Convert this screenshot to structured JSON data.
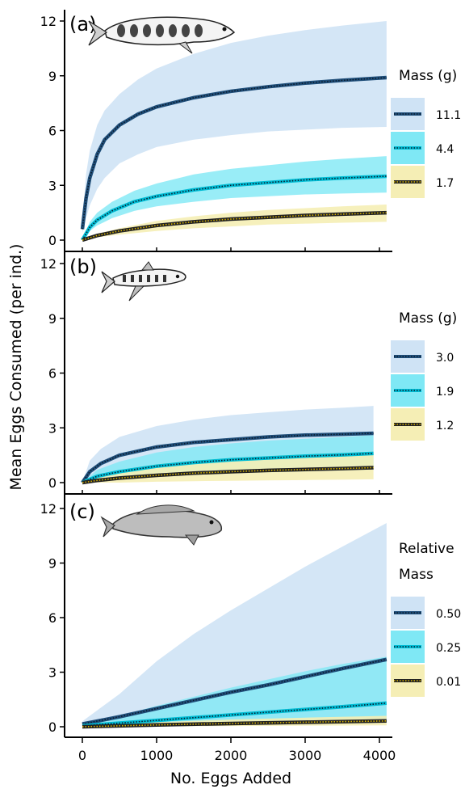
{
  "figure": {
    "ylabel": "Mean Eggs Consumed (per ind.)",
    "xlabel": "No. Eggs Added",
    "x_ticks": [
      0,
      1000,
      2000,
      3000,
      4000
    ],
    "y_ticks": [
      0,
      3,
      6,
      9,
      12
    ],
    "colors": {
      "large": "#1f4e79",
      "medium": "#00bcd4",
      "small": "#222222",
      "large_ribbon": "#cfe3f5",
      "medium_ribbon": "#7fe8f5",
      "small_ribbon": "#f5eeb5"
    }
  },
  "chart_data": [
    {
      "type": "line",
      "panel_label": "(a)",
      "icon": "trout-icon",
      "legend_title": [
        "Mass (g)"
      ],
      "x_range": [
        0,
        4096
      ],
      "ylim": [
        0,
        12
      ],
      "series": [
        {
          "name": "11.1",
          "key": "large",
          "x": [
            0,
            50,
            100,
            200,
            300,
            500,
            750,
            1000,
            1500,
            2000,
            2500,
            3000,
            3500,
            4096
          ],
          "y": [
            0.6,
            2.3,
            3.4,
            4.7,
            5.5,
            6.3,
            6.9,
            7.3,
            7.8,
            8.15,
            8.4,
            8.6,
            8.75,
            8.9
          ],
          "lower": [
            0.4,
            1.2,
            1.9,
            2.8,
            3.4,
            4.2,
            4.7,
            5.1,
            5.5,
            5.75,
            5.95,
            6.05,
            6.15,
            6.2
          ],
          "upper": [
            0.9,
            3.6,
            4.9,
            6.3,
            7.1,
            8.0,
            8.8,
            9.4,
            10.2,
            10.8,
            11.2,
            11.5,
            11.75,
            12.0
          ]
        },
        {
          "name": "4.4",
          "key": "medium",
          "x": [
            0,
            100,
            200,
            400,
            700,
            1000,
            1500,
            2000,
            2500,
            3000,
            3500,
            4096
          ],
          "y": [
            0,
            0.7,
            1.1,
            1.6,
            2.1,
            2.4,
            2.75,
            3.0,
            3.15,
            3.3,
            3.4,
            3.5
          ],
          "lower": [
            0,
            0.5,
            0.8,
            1.2,
            1.6,
            1.85,
            2.1,
            2.3,
            2.4,
            2.5,
            2.55,
            2.6
          ],
          "upper": [
            0,
            1.0,
            1.5,
            2.1,
            2.7,
            3.1,
            3.6,
            3.9,
            4.1,
            4.3,
            4.45,
            4.6
          ]
        },
        {
          "name": "1.7",
          "key": "small",
          "x": [
            0,
            200,
            500,
            1000,
            1500,
            2000,
            2500,
            3000,
            3500,
            4096
          ],
          "y": [
            0,
            0.25,
            0.5,
            0.8,
            1.0,
            1.15,
            1.25,
            1.35,
            1.42,
            1.5
          ],
          "lower": [
            0,
            0.15,
            0.3,
            0.5,
            0.65,
            0.75,
            0.85,
            0.9,
            0.95,
            1.0
          ],
          "upper": [
            0,
            0.35,
            0.65,
            1.05,
            1.3,
            1.5,
            1.65,
            1.75,
            1.85,
            1.95
          ]
        }
      ]
    },
    {
      "type": "line",
      "panel_label": "(b)",
      "icon": "minnow-icon",
      "legend_title": [
        "Mass (g)"
      ],
      "x_range": [
        0,
        3920
      ],
      "ylim": [
        0,
        12
      ],
      "series": [
        {
          "name": "3.0",
          "key": "large",
          "x": [
            0,
            100,
            250,
            500,
            1000,
            1500,
            2000,
            2500,
            3000,
            3500,
            3920
          ],
          "y": [
            0,
            0.6,
            1.05,
            1.5,
            1.95,
            2.2,
            2.35,
            2.5,
            2.6,
            2.65,
            2.7
          ],
          "lower": [
            0,
            0.2,
            0.45,
            0.7,
            1.0,
            1.2,
            1.35,
            1.45,
            1.55,
            1.6,
            1.65
          ],
          "upper": [
            0,
            1.2,
            1.85,
            2.5,
            3.1,
            3.45,
            3.7,
            3.85,
            4.0,
            4.1,
            4.2
          ]
        },
        {
          "name": "1.9",
          "key": "medium",
          "x": [
            0,
            200,
            500,
            1000,
            1500,
            2000,
            2500,
            3000,
            3500,
            3920
          ],
          "y": [
            0,
            0.35,
            0.6,
            0.9,
            1.1,
            1.25,
            1.35,
            1.45,
            1.52,
            1.6
          ],
          "lower": [
            0,
            0.1,
            0.2,
            0.35,
            0.45,
            0.5,
            0.55,
            0.6,
            0.65,
            0.7
          ],
          "upper": [
            0,
            0.7,
            1.15,
            1.65,
            1.95,
            2.15,
            2.3,
            2.4,
            2.5,
            2.6
          ]
        },
        {
          "name": "1.2",
          "key": "small",
          "x": [
            0,
            200,
            500,
            1000,
            1500,
            2000,
            2500,
            3000,
            3500,
            3920
          ],
          "y": [
            0,
            0.12,
            0.25,
            0.4,
            0.52,
            0.6,
            0.67,
            0.72,
            0.77,
            0.82
          ],
          "lower": [
            0,
            0.0,
            0.0,
            0.05,
            0.08,
            0.1,
            0.12,
            0.14,
            0.16,
            0.18
          ],
          "upper": [
            0,
            0.4,
            0.7,
            1.0,
            1.2,
            1.35,
            1.45,
            1.55,
            1.62,
            1.7
          ]
        }
      ]
    },
    {
      "type": "line",
      "panel_label": "(c)",
      "icon": "sculpin-icon",
      "legend_title": [
        "Relative",
        "Mass"
      ],
      "x_range": [
        0,
        4096
      ],
      "ylim": [
        0,
        12
      ],
      "series": [
        {
          "name": "0.50",
          "key": "large",
          "x": [
            0,
            500,
            1000,
            1500,
            2000,
            2500,
            3000,
            3500,
            4096
          ],
          "y": [
            0.15,
            0.55,
            1.0,
            1.45,
            1.9,
            2.3,
            2.75,
            3.2,
            3.7
          ],
          "lower": [
            0.05,
            0.1,
            0.15,
            0.2,
            0.25,
            0.3,
            0.35,
            0.4,
            0.45
          ],
          "upper": [
            0.3,
            1.8,
            3.6,
            5.1,
            6.4,
            7.6,
            8.8,
            9.9,
            11.2
          ]
        },
        {
          "name": "0.25",
          "key": "medium",
          "x": [
            0,
            500,
            1000,
            1500,
            2000,
            2500,
            3000,
            3500,
            4096
          ],
          "y": [
            0.05,
            0.2,
            0.35,
            0.5,
            0.65,
            0.8,
            0.95,
            1.1,
            1.3
          ],
          "lower": [
            0,
            0.05,
            0.08,
            0.1,
            0.12,
            0.15,
            0.18,
            0.2,
            0.22
          ],
          "upper": [
            0.1,
            0.6,
            1.15,
            1.65,
            2.15,
            2.6,
            3.05,
            3.45,
            3.85
          ]
        },
        {
          "name": "0.01",
          "key": "small",
          "x": [
            0,
            1000,
            2000,
            3000,
            4096
          ],
          "y": [
            0,
            0.1,
            0.18,
            0.25,
            0.32
          ],
          "lower": [
            0,
            0.02,
            0.04,
            0.06,
            0.08
          ],
          "upper": [
            0,
            0.25,
            0.4,
            0.5,
            0.6
          ]
        }
      ]
    }
  ]
}
